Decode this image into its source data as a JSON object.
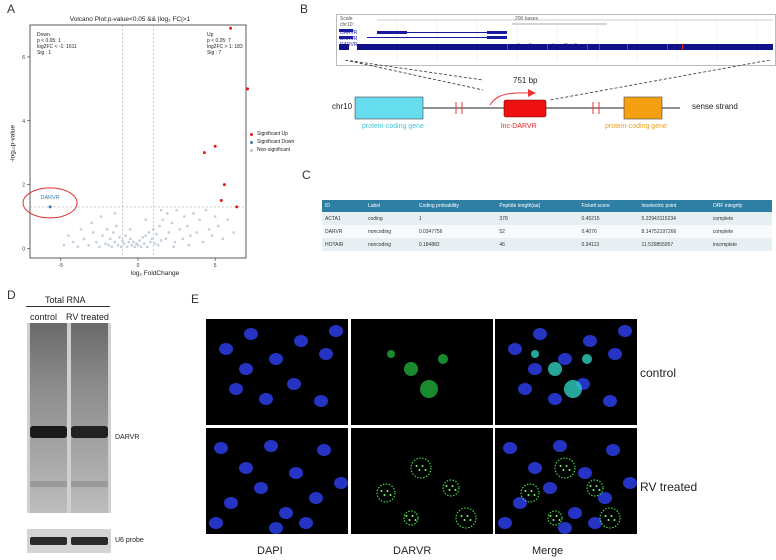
{
  "panels": {
    "A": "A",
    "B": "B",
    "C": "C",
    "D": "D",
    "E": "E"
  },
  "volcano": {
    "title": "Volcano Plot:p-value<0.05 && |log₂ FC|>1",
    "xlabel": "log₂ FoldChange",
    "ylabel": "-log₁₀p-value",
    "down_stats": [
      "Down",
      "p < 0.05: 1",
      "log2FC < -1: 1611",
      "Sig : 1"
    ],
    "up_stats": [
      "Up",
      "p < 0.05: 7",
      "log2FC > 1: 183",
      "Sig : 7"
    ],
    "legend": [
      "Significant Up",
      "Significant Down",
      "Non-significant"
    ],
    "colors": {
      "up": "#e41a1c",
      "down": "#377eb8",
      "ns": "#b8c4d6",
      "annot": "#e03030"
    },
    "annotation": "DARVR",
    "chart_data": {
      "type": "scatter",
      "xlim": [
        -7,
        7
      ],
      "ylim": [
        -0.3,
        7
      ],
      "xticks": [
        -5,
        0,
        5
      ],
      "yticks": [
        0,
        2,
        4,
        6
      ],
      "thresholds": {
        "x": [
          -1,
          1
        ],
        "y": 1.3
      },
      "series": [
        {
          "name": "Significant Up",
          "points": [
            [
              6.0,
              6.9
            ],
            [
              7.1,
              5.0
            ],
            [
              5.0,
              3.2
            ],
            [
              4.3,
              3.0
            ],
            [
              5.6,
              2.0
            ],
            [
              5.4,
              1.5
            ],
            [
              6.4,
              1.3
            ]
          ]
        },
        {
          "name": "Significant Down",
          "points": [
            [
              -5.7,
              1.3
            ]
          ]
        },
        {
          "name": "Non-significant",
          "points": [
            [
              -4.8,
              0.1
            ],
            [
              -4.2,
              0.2
            ],
            [
              -3.9,
              0.05
            ],
            [
              -3.5,
              0.3
            ],
            [
              -3.2,
              0.1
            ],
            [
              -2.9,
              0.5
            ],
            [
              -2.7,
              0.2
            ],
            [
              -2.5,
              0.05
            ],
            [
              -2.3,
              0.4
            ],
            [
              -2.1,
              0.15
            ],
            [
              -2.0,
              0.6
            ],
            [
              -1.9,
              0.1
            ],
            [
              -1.8,
              0.3
            ],
            [
              -1.7,
              0.05
            ],
            [
              -1.6,
              0.5
            ],
            [
              -1.5,
              0.2
            ],
            [
              -1.4,
              0.7
            ],
            [
              -1.3,
              0.1
            ],
            [
              -1.2,
              0.35
            ],
            [
              -1.1,
              0.05
            ],
            [
              -1.0,
              0.25
            ],
            [
              -0.9,
              0.15
            ],
            [
              -0.8,
              0.4
            ],
            [
              -0.7,
              0.05
            ],
            [
              -0.6,
              0.2
            ],
            [
              -0.5,
              0.3
            ],
            [
              -0.4,
              0.1
            ],
            [
              -0.3,
              0.2
            ],
            [
              -0.2,
              0.05
            ],
            [
              -0.1,
              0.15
            ],
            [
              0.0,
              0.1
            ],
            [
              0.1,
              0.25
            ],
            [
              0.2,
              0.05
            ],
            [
              0.3,
              0.35
            ],
            [
              0.4,
              0.15
            ],
            [
              0.5,
              0.4
            ],
            [
              0.6,
              0.05
            ],
            [
              0.7,
              0.5
            ],
            [
              0.8,
              0.2
            ],
            [
              0.9,
              0.3
            ],
            [
              1.0,
              0.6
            ],
            [
              1.1,
              0.15
            ],
            [
              1.2,
              0.45
            ],
            [
              1.3,
              0.1
            ],
            [
              1.4,
              0.7
            ],
            [
              1.5,
              0.25
            ],
            [
              1.6,
              0.9
            ],
            [
              1.8,
              0.3
            ],
            [
              1.9,
              1.1
            ],
            [
              2.0,
              0.5
            ],
            [
              2.2,
              0.8
            ],
            [
              2.4,
              0.2
            ],
            [
              2.5,
              1.2
            ],
            [
              2.7,
              0.6
            ],
            [
              2.9,
              0.3
            ],
            [
              3.0,
              1.0
            ],
            [
              3.2,
              0.7
            ],
            [
              3.4,
              0.4
            ],
            [
              3.6,
              1.1
            ],
            [
              3.8,
              0.5
            ],
            [
              4.0,
              0.9
            ],
            [
              4.2,
              0.2
            ],
            [
              4.4,
              1.2
            ],
            [
              4.6,
              0.6
            ],
            [
              4.8,
              0.4
            ],
            [
              5.0,
              1.0
            ],
            [
              5.2,
              0.7
            ],
            [
              5.5,
              0.3
            ],
            [
              5.8,
              0.9
            ],
            [
              6.2,
              0.5
            ],
            [
              -3.0,
              0.8
            ],
            [
              -2.4,
              1.0
            ],
            [
              -1.5,
              1.1
            ],
            [
              -0.5,
              0.6
            ],
            [
              0.5,
              0.9
            ],
            [
              1.5,
              1.2
            ],
            [
              2.3,
              0.05
            ],
            [
              3.3,
              0.1
            ],
            [
              -4.5,
              0.4
            ],
            [
              -3.7,
              0.6
            ]
          ]
        }
      ]
    }
  },
  "genome": {
    "chrom": "chr10",
    "strand": "sense strand",
    "bp": "751 bp",
    "left_gene": "protein-coding  gene",
    "center_gene": "lnc-DARVR",
    "right_gene": "protein-coding  gene",
    "colors": {
      "left": "#66ddee",
      "center": "#ee1111",
      "right": "#f5a011"
    }
  },
  "browser": {
    "labels": [
      "Scale",
      "chr10:"
    ],
    "scale_text": "200 bases",
    "sub_text": "Your Sequence from Blat Search",
    "track_labels": [
      "DARVR",
      "DARVR",
      "DARVR"
    ]
  },
  "table": {
    "headers": [
      "ID",
      "Label",
      "Coding probability",
      "Peptide length(aa)",
      "Fickett score",
      "Isoelectric point",
      "ORF integrity"
    ],
    "rows": [
      [
        "ACTA1",
        "coding",
        "1",
        "378",
        "0.45215",
        "5.22943115234",
        "complete"
      ],
      [
        "DARVR",
        "noncoding",
        "0.0347756",
        "52",
        "0.4076",
        "8.14752197266",
        "complete"
      ],
      [
        "HOTAIR",
        "noncoding",
        "0.184882",
        "46",
        "0.34113",
        "11.539855957",
        "incomplete"
      ]
    ]
  },
  "northern": {
    "header": "Total RNA",
    "lanes": [
      "control",
      "RV treated"
    ],
    "band_label": "DARVR",
    "probe_label": "U6 probe"
  },
  "microscopy": {
    "columns": [
      "DAPI",
      "DARVR",
      "Merge"
    ],
    "rows": [
      "control",
      "RV treated"
    ]
  }
}
